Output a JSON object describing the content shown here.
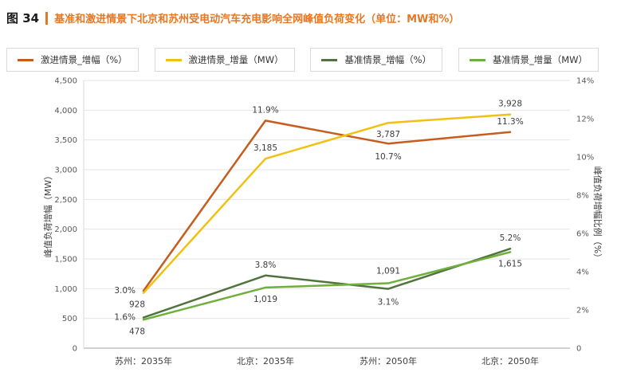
{
  "header": {
    "figure_label": "图 34",
    "title": "基准和激进情景下北京和苏州受电动汽车充电影响全网峰值负荷变化（单位：MW和%）"
  },
  "colors": {
    "accent": "#E87722",
    "title_text": "#E87722",
    "axis_text": "#595959",
    "x_label_text": "#404040",
    "data_label_text": "#3d3d3d",
    "grid": "#e6e6e6",
    "axis_line": "#a6a6a6",
    "left_axis_line": "#d9d9d9"
  },
  "chart_data": {
    "type": "line",
    "title": "基准和激进情景下北京和苏州受电动汽车充电影响全网峰值负荷变化（单位：MW和%）",
    "categories": [
      "苏州：2035年",
      "北京：2035年",
      "苏州：2050年",
      "北京：2050年"
    ],
    "left_axis": {
      "label": "峰值负荷增幅（MW）",
      "min": 0,
      "max": 4500,
      "step": 500,
      "ticks": [
        "0",
        "500",
        "1,000",
        "1,500",
        "2,000",
        "2,500",
        "3,000",
        "3,500",
        "4,000",
        "4,500"
      ]
    },
    "right_axis": {
      "label": "峰值负荷增幅比例（%）",
      "min": 0,
      "max": 14,
      "step": 2,
      "ticks": [
        "0",
        "2%",
        "4%",
        "6%",
        "8%",
        "10%",
        "12%",
        "14%"
      ]
    },
    "grid": true,
    "legend_position": "top",
    "series": [
      {
        "name": "激进情景_增幅（%）",
        "axis": "right",
        "color": "#C65D1E",
        "values": [
          3.0,
          11.9,
          10.7,
          11.3
        ],
        "labels": [
          "3.0%",
          "11.9%",
          "10.7%",
          "11.3%"
        ]
      },
      {
        "name": "激进情景_增量（MW）",
        "axis": "left",
        "color": "#F2C011",
        "values": [
          928,
          3185,
          3787,
          3928
        ],
        "labels": [
          "928",
          "3,185",
          "3,787",
          "3,928"
        ]
      },
      {
        "name": "基准情景_增幅（%）",
        "axis": "right",
        "color": "#51743F",
        "values": [
          1.6,
          3.8,
          3.1,
          5.2
        ],
        "labels": [
          "1.6%",
          "3.8%",
          "3.1%",
          "5.2%"
        ]
      },
      {
        "name": "基准情景_增量（MW）",
        "axis": "left",
        "color": "#6FB03C",
        "values": [
          478,
          1019,
          1091,
          1615
        ],
        "labels": [
          "478",
          "1,019",
          "1,091",
          "1,615"
        ]
      }
    ]
  }
}
